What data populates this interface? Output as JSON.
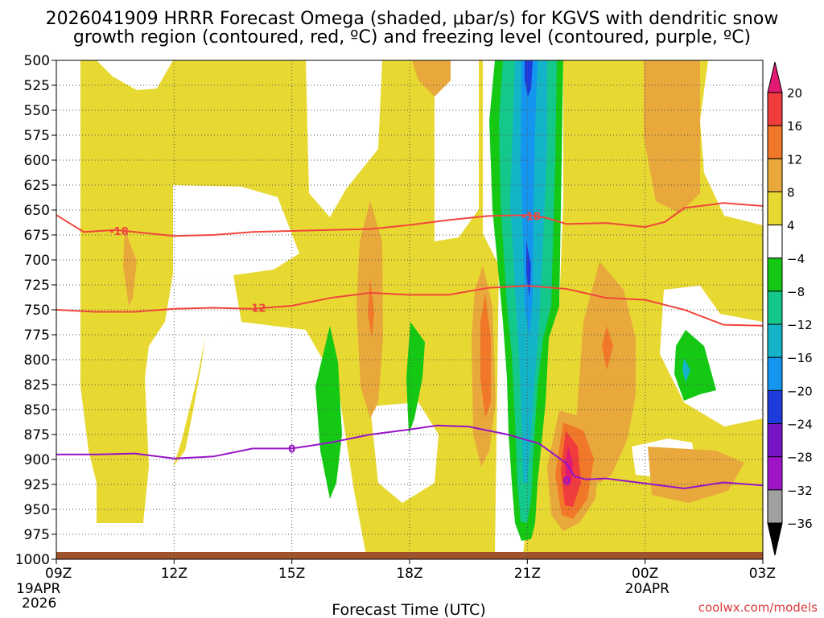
{
  "chart_data": {
    "type": "contour",
    "title_line1": "2026041909 HRRR Forecast Omega (shaded, μbar/s) for KGVS with dendritic snow",
    "title_line2": "growth region (contoured, red, ºC) and freezing level (contoured, purple, ºC)",
    "xlabel": "Forecast Time (UTC)",
    "credit": "coolwx.com/models",
    "x_ticks": [
      {
        "h": 0,
        "label": "09Z",
        "sub1": "19APR",
        "sub2": "2026"
      },
      {
        "h": 3,
        "label": "12Z",
        "sub1": "",
        "sub2": ""
      },
      {
        "h": 6,
        "label": "15Z",
        "sub1": "",
        "sub2": ""
      },
      {
        "h": 9,
        "label": "18Z",
        "sub1": "",
        "sub2": ""
      },
      {
        "h": 12,
        "label": "21Z",
        "sub1": "",
        "sub2": ""
      },
      {
        "h": 15,
        "label": "00Z",
        "sub1": "20APR",
        "sub2": ""
      },
      {
        "h": 18,
        "label": "03Z",
        "sub1": "",
        "sub2": ""
      }
    ],
    "x_range_hours": [
      0,
      18
    ],
    "y_range_mb": [
      500,
      1000
    ],
    "y_ticks": [
      "500",
      "525",
      "550",
      "575",
      "600",
      "625",
      "650",
      "675",
      "700",
      "725",
      "750",
      "775",
      "800",
      "825",
      "850",
      "875",
      "900",
      "925",
      "950",
      "975",
      "1000"
    ],
    "colorbar": {
      "labels": [
        "20",
        "16",
        "12",
        "8",
        "4",
        "−4",
        "−8",
        "−12",
        "−16",
        "−20",
        "−24",
        "−28",
        "−32",
        "−36"
      ],
      "colors": [
        "#e31a73",
        "#f03c3c",
        "#f07828",
        "#e8a83c",
        "#e8d832",
        "#ffffff",
        "#14c814",
        "#14c88c",
        "#14b4c8",
        "#1496f0",
        "#1e3cdc",
        "#7814c8",
        "#a014c8",
        "#a0a0a0",
        "#000000"
      ]
    },
    "contours": [
      {
        "name": "dgz-top",
        "level": "-18",
        "color": "#f0463c",
        "points": [
          [
            0,
            655
          ],
          [
            0.7,
            672
          ],
          [
            1.5,
            670
          ],
          [
            3,
            676
          ],
          [
            4,
            675
          ],
          [
            5,
            672
          ],
          [
            6,
            671
          ],
          [
            7,
            670
          ],
          [
            8,
            669
          ],
          [
            9,
            665
          ],
          [
            10,
            660
          ],
          [
            11,
            656
          ],
          [
            12,
            655
          ],
          [
            12.5,
            658
          ],
          [
            13,
            664
          ],
          [
            14,
            663
          ],
          [
            15,
            667
          ],
          [
            15.5,
            662
          ],
          [
            16,
            648
          ],
          [
            17,
            643
          ],
          [
            18,
            646
          ]
        ],
        "labels": [
          {
            "h": 1.6,
            "p": 671,
            "text": "-18"
          },
          {
            "h": 12.1,
            "p": 656,
            "text": "-18"
          }
        ]
      },
      {
        "name": "dgz-bottom",
        "level": "-12",
        "color": "#f0463c",
        "points": [
          [
            0,
            750
          ],
          [
            1,
            752
          ],
          [
            2,
            752
          ],
          [
            3,
            749
          ],
          [
            4,
            748
          ],
          [
            5,
            749
          ],
          [
            6,
            746
          ],
          [
            7,
            738
          ],
          [
            8,
            733
          ],
          [
            9,
            735
          ],
          [
            10,
            735
          ],
          [
            11,
            728
          ],
          [
            12,
            726
          ],
          [
            13,
            729
          ],
          [
            14,
            738
          ],
          [
            15,
            740
          ],
          [
            16,
            750
          ],
          [
            17,
            765
          ],
          [
            18,
            766
          ]
        ],
        "labels": [
          {
            "h": 5.1,
            "p": 748,
            "text": "-12"
          }
        ]
      },
      {
        "name": "freezing-level",
        "level": "0",
        "color": "#9614c8",
        "points": [
          [
            0,
            895
          ],
          [
            1,
            895
          ],
          [
            2,
            894
          ],
          [
            3,
            899
          ],
          [
            4,
            897
          ],
          [
            5,
            889
          ],
          [
            6,
            889
          ],
          [
            7,
            883
          ],
          [
            8,
            875
          ],
          [
            9,
            870
          ],
          [
            9.7,
            866
          ],
          [
            10.5,
            867
          ],
          [
            11.5,
            875
          ],
          [
            12.3,
            884
          ],
          [
            13,
            904
          ],
          [
            13.2,
            917
          ],
          [
            13.5,
            920
          ],
          [
            14,
            919
          ],
          [
            15,
            924
          ],
          [
            16,
            929
          ],
          [
            17,
            923
          ],
          [
            18,
            926
          ]
        ],
        "labels": [
          {
            "h": 6.0,
            "p": 889,
            "text": "0"
          },
          {
            "h": 13.0,
            "p": 921,
            "text": "0"
          }
        ]
      }
    ]
  }
}
